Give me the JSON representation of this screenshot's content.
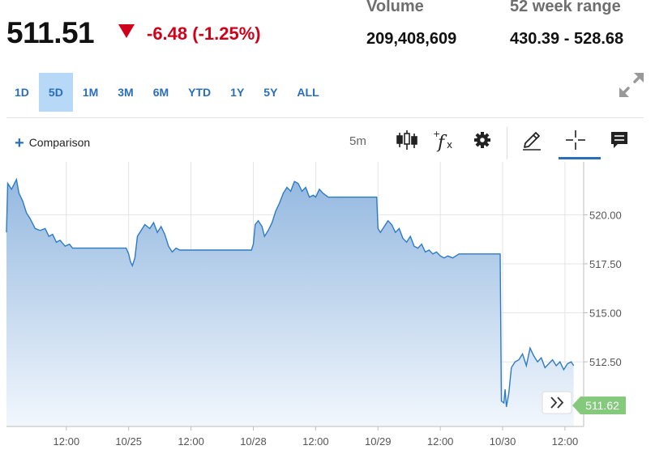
{
  "quote": {
    "price": "511.51",
    "change": "-6.48 (-1.25%)",
    "change_color": "#d0021b"
  },
  "stats": {
    "volume_label": "Volume",
    "volume_value": "209,408,609",
    "range_label": "52 week range",
    "range_value": "430.39 - 528.68"
  },
  "range_tabs": [
    "1D",
    "5D",
    "1M",
    "3M",
    "6M",
    "YTD",
    "1Y",
    "5Y",
    "ALL"
  ],
  "active_tab": "5D",
  "toolbar": {
    "comparison_label": "Comparison",
    "interval_label": "5m",
    "icons": [
      "candlestick-icon",
      "fx-indicator-icon",
      "gear-icon",
      "pencil-icon",
      "crosshair-icon",
      "comment-icon"
    ]
  },
  "colors": {
    "line": "#2e7bc4",
    "fill_top": "#95b9e0",
    "fill_bottom": "#f2f7fd",
    "accent": "#2a6ebb",
    "last_price_badge": "#84c97c"
  },
  "chart_data": {
    "type": "area",
    "title": "",
    "xlabel": "",
    "ylabel": "",
    "ylim": [
      509.2,
      522.7
    ],
    "yticks": [
      512.5,
      515.0,
      517.5,
      520.0
    ],
    "ytick_labels": [
      "512.50",
      "515.00",
      "517.50",
      "520.00"
    ],
    "x_ticks": [
      "12:00",
      "10/25",
      "12:00",
      "10/28",
      "12:00",
      "10/29",
      "12:00",
      "10/30",
      "12:00"
    ],
    "x_tick_pos": [
      1.0,
      2.0,
      3.0,
      4.0,
      5.0,
      6.0,
      7.0,
      8.0,
      9.0
    ],
    "xlim": [
      0.04,
      9.3
    ],
    "grid": true,
    "last_price_label": "511.62",
    "series": [
      {
        "x": [
          0.04,
          0.06,
          0.12,
          0.2,
          0.24,
          0.3,
          0.36,
          0.42,
          0.5,
          0.58,
          0.66,
          0.72,
          0.78,
          0.84,
          0.9,
          0.98,
          1.05,
          1.1,
          1.2,
          1.4,
          1.6,
          1.8,
          1.96,
          2.0,
          2.03,
          2.06,
          2.1,
          2.14,
          2.2,
          2.26,
          2.34,
          2.4,
          2.46,
          2.52,
          2.58,
          2.64,
          2.7,
          2.76,
          2.82,
          2.88,
          3.0,
          3.3,
          3.6,
          3.9,
          3.97,
          4.0,
          4.03,
          4.08,
          4.14,
          4.18,
          4.24,
          4.3,
          4.36,
          4.42,
          4.48,
          4.54,
          4.6,
          4.66,
          4.72,
          4.78,
          4.84,
          4.9,
          4.96,
          5.0,
          5.06,
          5.12,
          5.2,
          5.3,
          5.5,
          5.7,
          5.85,
          5.98,
          6.0,
          6.04,
          6.1,
          6.16,
          6.22,
          6.28,
          6.34,
          6.4,
          6.46,
          6.52,
          6.58,
          6.64,
          6.7,
          6.76,
          6.82,
          6.88,
          6.94,
          7.0,
          7.06,
          7.12,
          7.2,
          7.3,
          7.5,
          7.7,
          7.9,
          7.96,
          7.98,
          8.02,
          8.04,
          8.06,
          8.1,
          8.14,
          8.2,
          8.26,
          8.32,
          8.38,
          8.44,
          8.5,
          8.56,
          8.62,
          8.68,
          8.74,
          8.8,
          8.86,
          8.92,
          8.98,
          9.04,
          9.1,
          9.14
        ],
        "y": [
          519.1,
          521.6,
          521.3,
          521.8,
          521.1,
          520.7,
          520.1,
          519.8,
          519.3,
          519.2,
          519.3,
          518.9,
          519.0,
          518.6,
          518.7,
          518.4,
          518.5,
          518.3,
          518.3,
          518.3,
          518.3,
          518.3,
          518.3,
          518.0,
          517.6,
          517.4,
          517.8,
          518.9,
          519.2,
          519.5,
          519.3,
          519.6,
          519.1,
          519.4,
          519.0,
          518.4,
          518.1,
          518.3,
          518.2,
          518.2,
          518.2,
          518.2,
          518.2,
          518.2,
          518.2,
          518.5,
          519.5,
          519.7,
          519.4,
          518.9,
          519.2,
          519.6,
          520.2,
          520.6,
          521.1,
          521.4,
          521.2,
          521.7,
          521.6,
          521.2,
          521.4,
          520.9,
          521.0,
          520.9,
          521.3,
          521.1,
          520.9,
          520.9,
          520.9,
          520.9,
          520.9,
          520.9,
          519.3,
          519.1,
          519.4,
          519.7,
          519.5,
          519.1,
          519.3,
          518.8,
          518.6,
          518.9,
          518.4,
          518.3,
          518.5,
          518.1,
          518.2,
          518.0,
          518.1,
          517.9,
          517.8,
          517.9,
          517.8,
          518.0,
          518.0,
          518.0,
          518.0,
          518.0,
          510.5,
          510.4,
          511.1,
          510.2,
          510.9,
          512.2,
          512.5,
          512.6,
          512.9,
          512.3,
          513.2,
          512.8,
          512.5,
          512.7,
          512.2,
          512.4,
          512.6,
          512.3,
          512.5,
          512.1,
          512.4,
          512.5,
          512.3
        ]
      }
    ]
  }
}
